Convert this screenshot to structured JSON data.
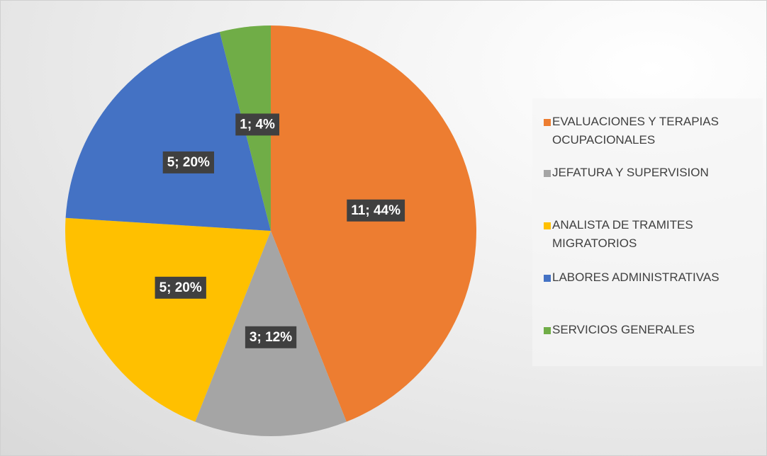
{
  "chart_data": {
    "type": "pie",
    "categories": [
      "EVALUACIONES Y TERAPIAS OCUPACIONALES",
      "JEFATURA Y SUPERVISION",
      "ANALISTA DE TRAMITES MIGRATORIOS",
      "LABORES ADMINISTRATIVAS",
      "SERVICIOS GENERALES"
    ],
    "values": [
      11,
      3,
      5,
      5,
      1
    ],
    "value_labels": [
      "11; 44%",
      "3; 12%",
      "5; 20%",
      "5; 20%",
      "1; 4%"
    ],
    "colors": [
      "#ed7d31",
      "#a5a5a5",
      "#ffc000",
      "#4472c4",
      "#70ad47"
    ],
    "legend": "right"
  }
}
